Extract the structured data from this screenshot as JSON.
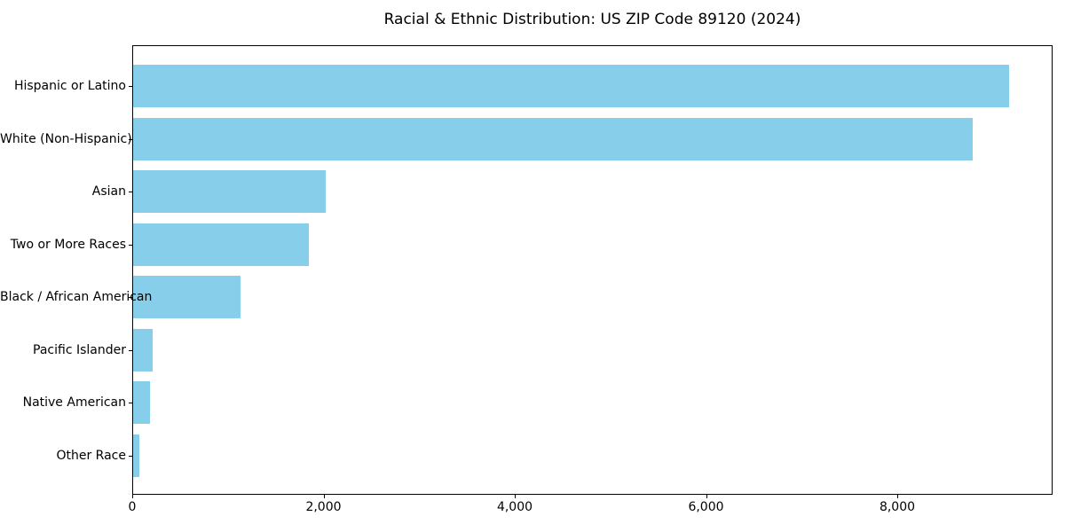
{
  "chart_data": {
    "type": "bar",
    "orientation": "horizontal",
    "title": "Racial & Ethnic Distribution: US ZIP Code 89120 (2024)",
    "categories": [
      "Hispanic or Latino",
      "White (Non-Hispanic)",
      "Asian",
      "Two or More Races",
      "Black / African American",
      "Pacific Islander",
      "Native American",
      "Other Race"
    ],
    "values": [
      9160,
      8780,
      2015,
      1840,
      1125,
      200,
      175,
      65
    ],
    "xlabel": "",
    "ylabel": "",
    "xlim": [
      0,
      9624
    ],
    "xticks": {
      "values": [
        0,
        2000,
        4000,
        6000,
        8000
      ],
      "labels": [
        "0",
        "2,000",
        "4,000",
        "6,000",
        "8,000"
      ]
    },
    "bar_color": "#87CEEB",
    "grid": false,
    "legend": null
  }
}
